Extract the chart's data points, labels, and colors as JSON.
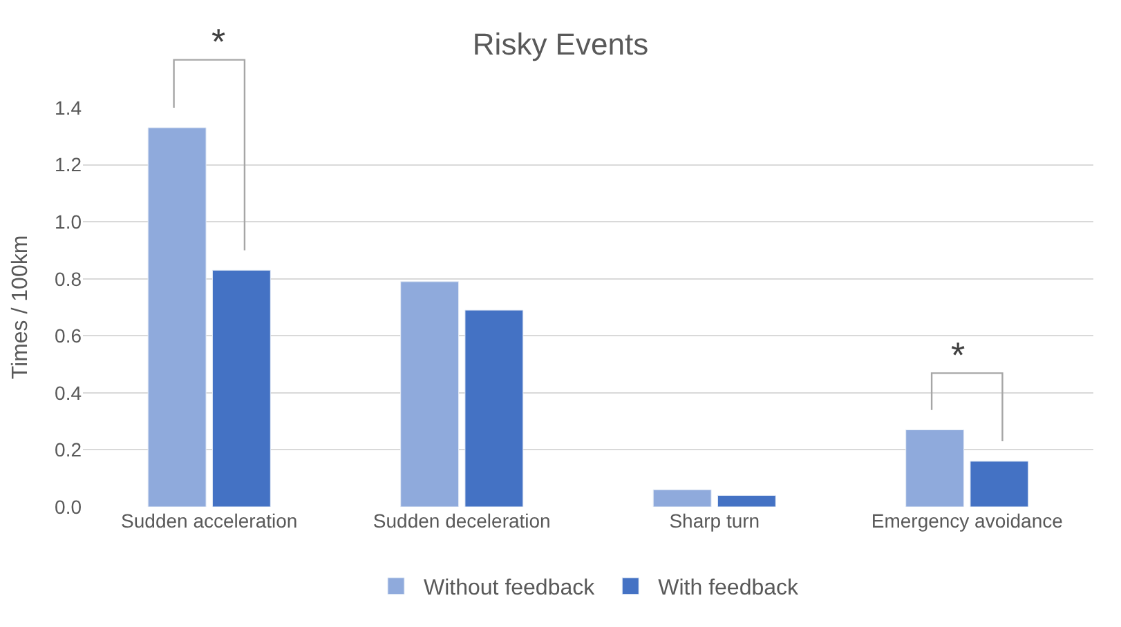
{
  "chart_data": {
    "type": "bar",
    "title": "Risky Events",
    "ylabel": "Times / 100km",
    "categories": [
      "Sudden acceleration",
      "Sudden deceleration",
      "Sharp turn",
      "Emergency avoidance"
    ],
    "series": [
      {
        "name": "Without feedback",
        "color": "#8faadc",
        "values": [
          1.33,
          0.79,
          0.06,
          0.27
        ]
      },
      {
        "name": "With feedback",
        "color": "#4472c4",
        "values": [
          0.83,
          0.69,
          0.04,
          0.16
        ]
      }
    ],
    "ylim": [
      0,
      1.4
    ],
    "yticks": [
      {
        "value": 0,
        "label": "0.0"
      },
      {
        "value": 0.2,
        "label": "0.2"
      },
      {
        "value": 0.4,
        "label": "0.4"
      },
      {
        "value": 0.6,
        "label": "0.6"
      },
      {
        "value": 0.8,
        "label": "0.8"
      },
      {
        "value": 1.0,
        "label": "1.0"
      },
      {
        "value": 1.2,
        "label": "1.2"
      },
      {
        "value": 1.4,
        "label": "1.4"
      }
    ],
    "grid": "y",
    "legend": "bottom",
    "annotations": [
      "*",
      "*"
    ]
  }
}
